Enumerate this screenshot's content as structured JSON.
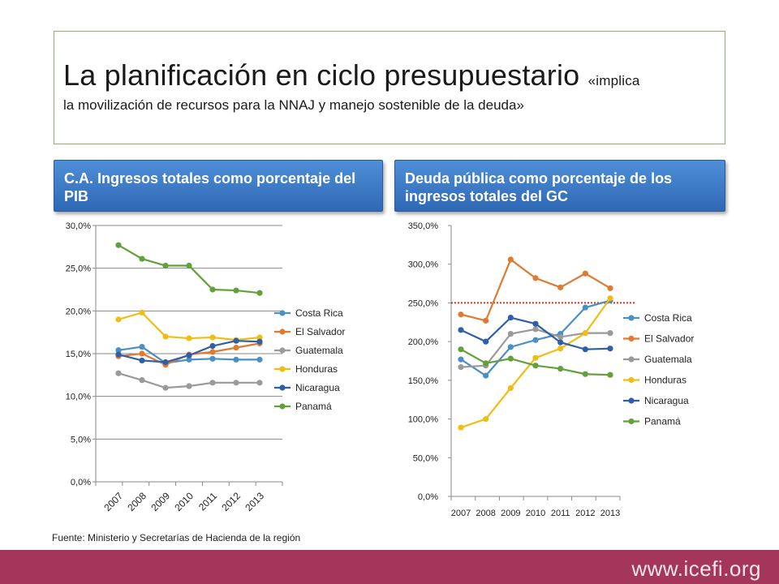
{
  "header": {
    "title": "La planificación en ciclo presupuestario",
    "subtitle_part1": "«implica",
    "subtitle_part2": "la movilización de recursos para la NNAJ y manejo sostenible de la deuda»"
  },
  "banners": {
    "left": "C.A. Ingresos totales como porcentaje del PIB",
    "right": "Deuda pública como porcentaje de los ingresos totales del GC"
  },
  "colors": {
    "Costa Rica": "#4a90c4",
    "El Salvador": "#e07a30",
    "Guatemala": "#9a9a9a",
    "Honduras": "#f1bd14",
    "Nicaragua": "#2f5fa8",
    "Panamá": "#63a03a",
    "reference_line": "#c0392b"
  },
  "chart_data": [
    {
      "type": "line",
      "categories": [
        "2007",
        "2008",
        "2009",
        "2010",
        "2011",
        "2012",
        "2013"
      ],
      "ylim": [
        0,
        30
      ],
      "yticks": [
        "0,0%",
        "5,0%",
        "10,0%",
        "15,0%",
        "20,0%",
        "25,0%",
        "30,0%"
      ],
      "grid": true,
      "legend_position": "right",
      "series": [
        {
          "name": "Costa Rica",
          "values": [
            15.4,
            15.8,
            13.9,
            14.3,
            14.4,
            14.3,
            14.3
          ]
        },
        {
          "name": "El Salvador",
          "values": [
            14.7,
            15.0,
            13.7,
            14.9,
            15.2,
            15.7,
            16.2
          ]
        },
        {
          "name": "Guatemala",
          "values": [
            12.7,
            11.9,
            11.0,
            11.2,
            11.6,
            11.6,
            11.6
          ]
        },
        {
          "name": "Honduras",
          "values": [
            19.0,
            19.8,
            17.0,
            16.8,
            16.9,
            16.6,
            16.9
          ]
        },
        {
          "name": "Nicaragua",
          "values": [
            14.9,
            14.2,
            14.0,
            14.8,
            15.9,
            16.5,
            16.4
          ]
        },
        {
          "name": "Panamá",
          "values": [
            27.7,
            26.1,
            25.3,
            25.3,
            22.5,
            22.4,
            22.1
          ]
        }
      ]
    },
    {
      "type": "line",
      "categories": [
        "2007",
        "2008",
        "2009",
        "2010",
        "2011",
        "2012",
        "2013"
      ],
      "ylim": [
        0,
        350
      ],
      "yticks": [
        "0,0%",
        "50,0%",
        "100,0%",
        "150,0%",
        "200,0%",
        "250,0%",
        "300,0%",
        "350,0%"
      ],
      "grid": false,
      "legend_position": "right",
      "reference_line": 250,
      "series": [
        {
          "name": "Costa Rica",
          "values": [
            177,
            156,
            193,
            202,
            210,
            244,
            253
          ]
        },
        {
          "name": "El Salvador",
          "values": [
            235,
            227,
            306,
            282,
            270,
            288,
            269
          ]
        },
        {
          "name": "Guatemala",
          "values": [
            167,
            169,
            210,
            216,
            206,
            211,
            211
          ]
        },
        {
          "name": "Honduras",
          "values": [
            89,
            100,
            140,
            179,
            191,
            211,
            256
          ]
        },
        {
          "name": "Nicaragua",
          "values": [
            215,
            200,
            231,
            223,
            199,
            190,
            191
          ]
        },
        {
          "name": "Panamá",
          "values": [
            190,
            172,
            178,
            169,
            165,
            158,
            157
          ]
        }
      ]
    }
  ],
  "source": "Fuente: Ministerio y Secretarías de Hacienda de la región",
  "footer": {
    "url": "www.icefi.org"
  }
}
